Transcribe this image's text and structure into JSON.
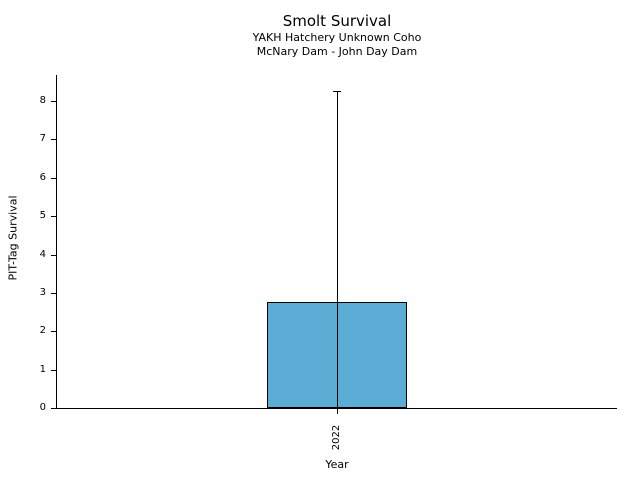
{
  "figure": {
    "title": "Smolt Survival",
    "subtitle_line1": "YAKH Hatchery Unknown Coho",
    "subtitle_line2": "McNary Dam - John Day Dam"
  },
  "chart_data": {
    "type": "bar",
    "title": "Smolt Survival",
    "subtitle": [
      "YAKH Hatchery Unknown Coho",
      "McNary Dam - John Day Dam"
    ],
    "categories": [
      "2022"
    ],
    "values": [
      2.75
    ],
    "error_low": [
      0
    ],
    "error_high": [
      8.25
    ],
    "xlabel": "Year",
    "ylabel": "PIT-Tag Survival",
    "ylim": [
      0,
      8.68
    ],
    "yticks": [
      0,
      1,
      2,
      3,
      4,
      5,
      6,
      7,
      8
    ],
    "grid": false,
    "legend": null,
    "bar_color": "#5BADD6",
    "bar_edge_color": "#000000",
    "axis_color": "#000000",
    "text_color": "#000000"
  }
}
